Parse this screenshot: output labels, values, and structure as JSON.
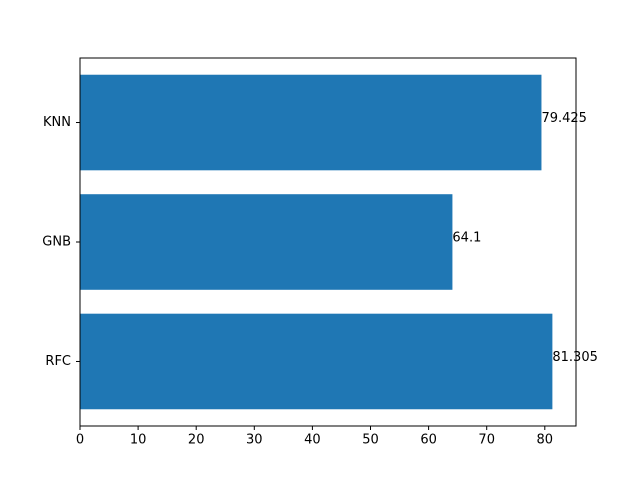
{
  "chart_data": {
    "type": "barh",
    "categories": [
      "RFC",
      "GNB",
      "KNN"
    ],
    "values": [
      81.305,
      64.1,
      79.425
    ],
    "color": "#1f77b4",
    "xlim": [
      0,
      85.37
    ],
    "xticks": [
      0,
      10,
      20,
      30,
      40,
      50,
      60,
      70,
      80
    ]
  }
}
